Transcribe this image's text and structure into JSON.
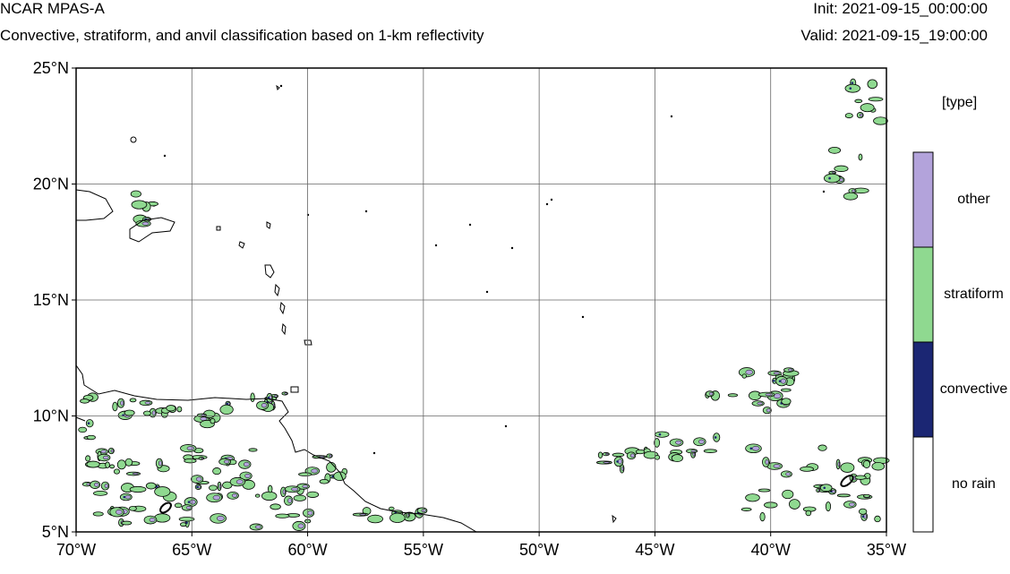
{
  "header": {
    "title": "NCAR MPAS-A",
    "subtitle": "Convective, stratiform, and anvil classification based on 1-km reflectivity",
    "init": "Init: 2021-09-15_00:00:00",
    "valid": "Valid: 2021-09-15_19:00:00"
  },
  "map": {
    "lon_range": [
      -70,
      -35
    ],
    "lat_range": [
      5,
      25
    ],
    "grid": true,
    "x_ticks": [
      "70°W",
      "65°W",
      "60°W",
      "55°W",
      "50°W",
      "45°W",
      "40°W",
      "35°W"
    ],
    "y_ticks": [
      "25°N",
      "20°N",
      "15°N",
      "10°N",
      "5°N"
    ],
    "coast_color": "#000000"
  },
  "legend": {
    "title": "[type]",
    "items": [
      {
        "label": "other",
        "color": "#b3a3db"
      },
      {
        "label": "stratiform",
        "color": "#8fd990"
      },
      {
        "label": "convective",
        "color": "#1b2673"
      },
      {
        "label": "no rain",
        "color": "#ffffff"
      }
    ]
  }
}
